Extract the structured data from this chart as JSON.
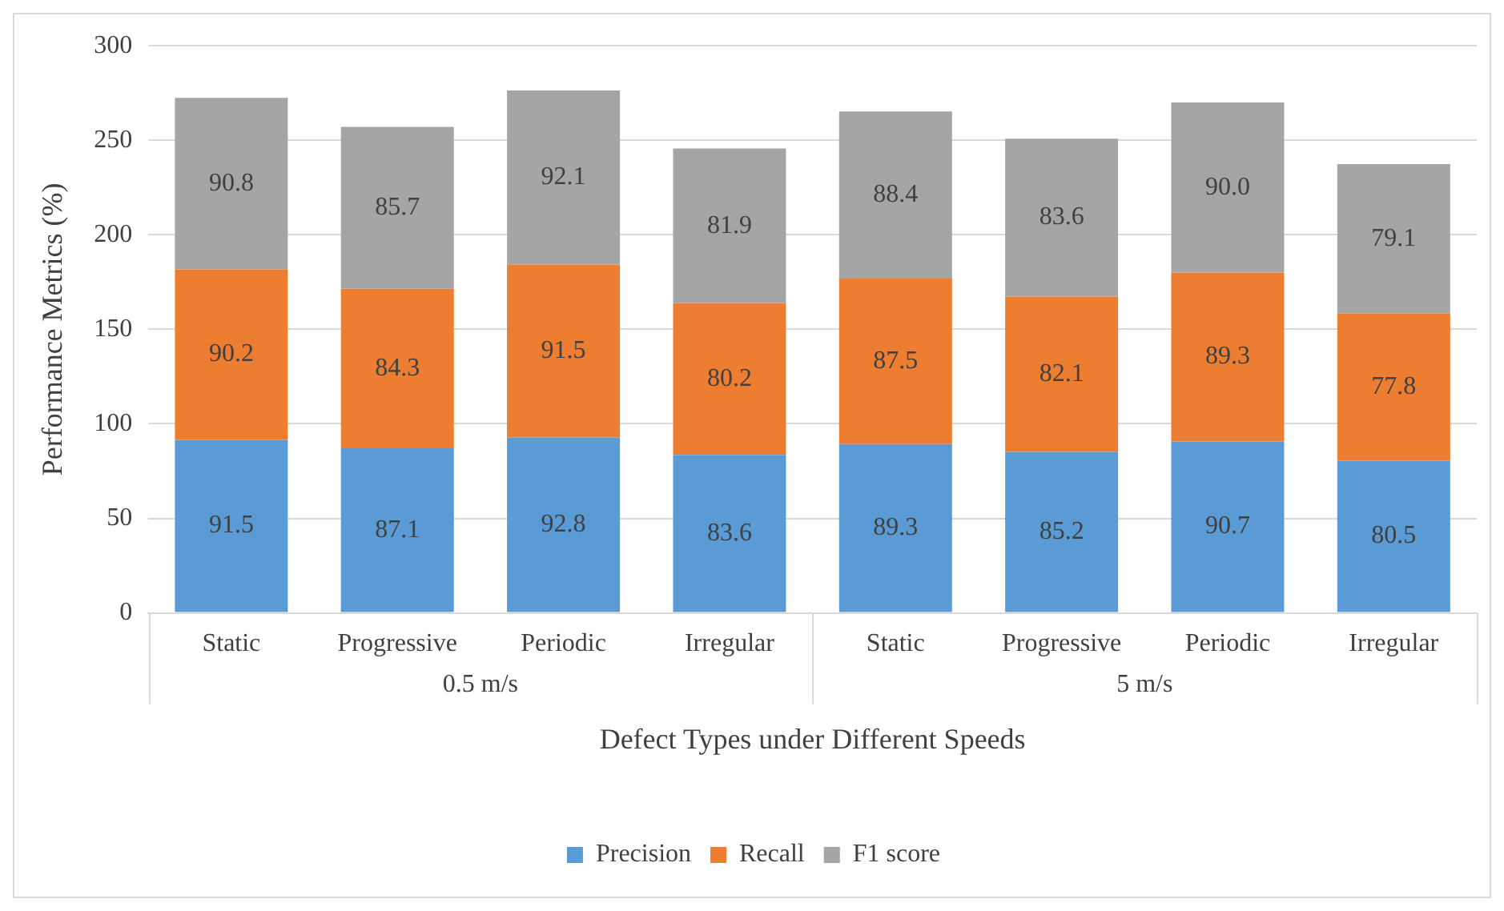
{
  "chart_data": {
    "type": "bar",
    "stacked": true,
    "ylabel": "Performance Metrics (%)",
    "xlabel": "Defect Types under Different Speeds",
    "categories": [
      "Static",
      "Progressive",
      "Periodic",
      "Irregular",
      "Static",
      "Progressive",
      "Periodic",
      "Irregular"
    ],
    "annotations": [
      "0.5 m/s",
      "5 m/s"
    ],
    "series": [
      {
        "name": "Precision",
        "color": "#5b9bd5",
        "values": [
          91.5,
          87.1,
          92.8,
          83.6,
          89.3,
          85.2,
          90.7,
          80.5
        ],
        "value_labels": [
          "91.5",
          "87.1",
          "92.8",
          "83.6",
          "89.3",
          "85.2",
          "90.7",
          "80.5"
        ]
      },
      {
        "name": "Recall",
        "color": "#ed7d31",
        "values": [
          90.2,
          84.3,
          91.5,
          80.2,
          87.5,
          82.1,
          89.3,
          77.8
        ],
        "value_labels": [
          "90.2",
          "84.3",
          "91.5",
          "80.2",
          "87.5",
          "82.1",
          "89.3",
          "77.8"
        ]
      },
      {
        "name": "F1 score",
        "color": "#a5a5a5",
        "values": [
          90.8,
          85.7,
          92.1,
          81.9,
          88.4,
          83.6,
          90.0,
          79.1
        ],
        "value_labels": [
          "90.8",
          "85.7",
          "92.1",
          "81.9",
          "88.4",
          "83.6",
          "90.0",
          "79.1"
        ]
      }
    ],
    "ylim": [
      0,
      300
    ],
    "yticks": [
      0,
      50,
      100,
      150,
      200,
      250,
      300
    ],
    "grid": "y",
    "legend": "bottom"
  }
}
